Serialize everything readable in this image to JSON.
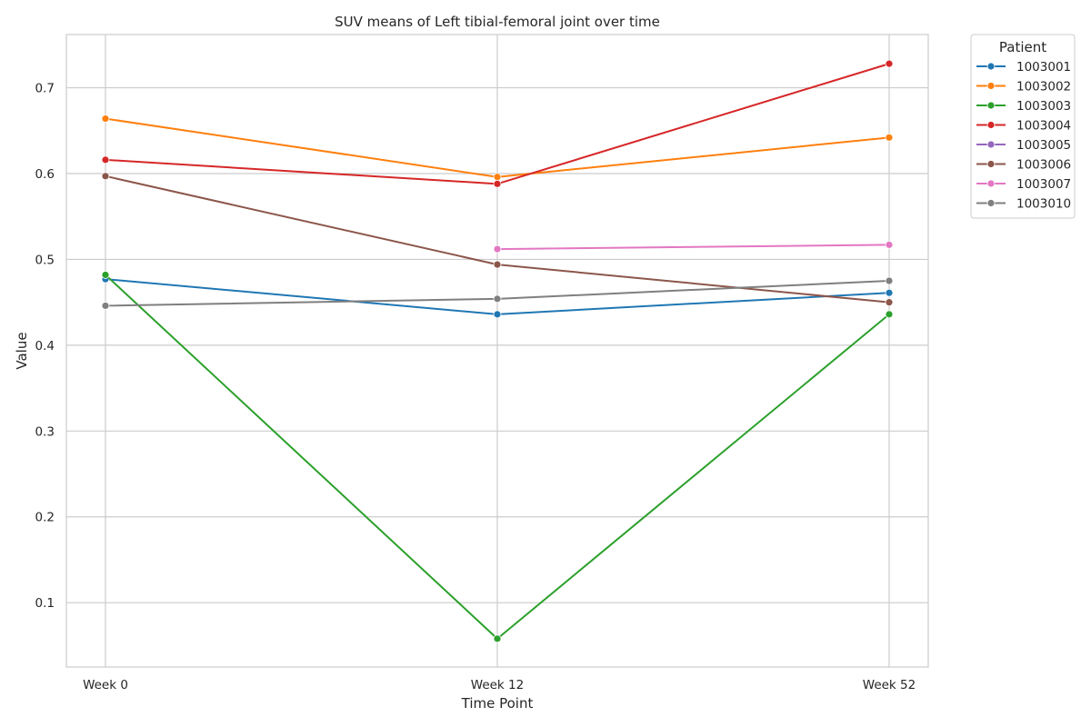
{
  "chart_data": {
    "type": "line",
    "title": "SUV means of Left tibial-femoral joint over time",
    "xlabel": "Time Point",
    "ylabel": "Value",
    "categories": [
      "Week 0",
      "Week 12",
      "Week 52"
    ],
    "yticks": [
      0.1,
      0.2,
      0.3,
      0.4,
      0.5,
      0.6,
      0.7
    ],
    "ylim": [
      0.025,
      0.762
    ],
    "grid": true,
    "legend": {
      "title": "Patient",
      "placement": "outside-right"
    },
    "series": [
      {
        "name": "1003001",
        "color": "#1f77b4",
        "values": [
          0.477,
          0.436,
          0.461
        ]
      },
      {
        "name": "1003002",
        "color": "#ff7f0e",
        "values": [
          0.664,
          0.596,
          0.642
        ]
      },
      {
        "name": "1003003",
        "color": "#2ca02c",
        "values": [
          0.482,
          0.058,
          0.436
        ]
      },
      {
        "name": "1003004",
        "color": "#d62728",
        "values": [
          0.616,
          0.588,
          0.728
        ]
      },
      {
        "name": "1003005",
        "color": "#9467bd",
        "values": [
          null,
          null,
          null
        ]
      },
      {
        "name": "1003006",
        "color": "#8c564b",
        "values": [
          0.597,
          0.494,
          0.45
        ]
      },
      {
        "name": "1003007",
        "color": "#e377c2",
        "values": [
          null,
          0.512,
          0.517
        ]
      },
      {
        "name": "1003010",
        "color": "#7f7f7f",
        "values": [
          0.446,
          0.454,
          0.475
        ]
      }
    ]
  }
}
